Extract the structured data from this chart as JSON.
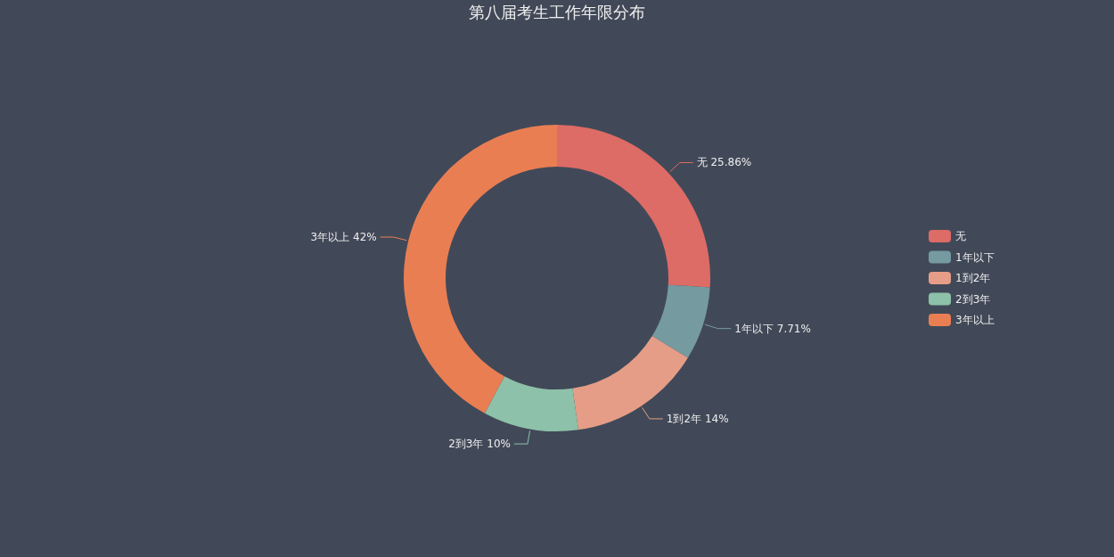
{
  "chart_data": {
    "type": "donut",
    "title": "第八届考生工作年限分布",
    "categories": [
      "无",
      "1年以下",
      "1到2年",
      "2到3年",
      "3年以上"
    ],
    "values": [
      25.86,
      7.71,
      14,
      10,
      42
    ],
    "value_labels": [
      "25.86%",
      "7.71%",
      "14%",
      "10%",
      "42%"
    ],
    "colors": [
      "#dd6b66",
      "#759aa0",
      "#e69d87",
      "#8dc1a9",
      "#ea7e53"
    ],
    "legend": "right"
  }
}
